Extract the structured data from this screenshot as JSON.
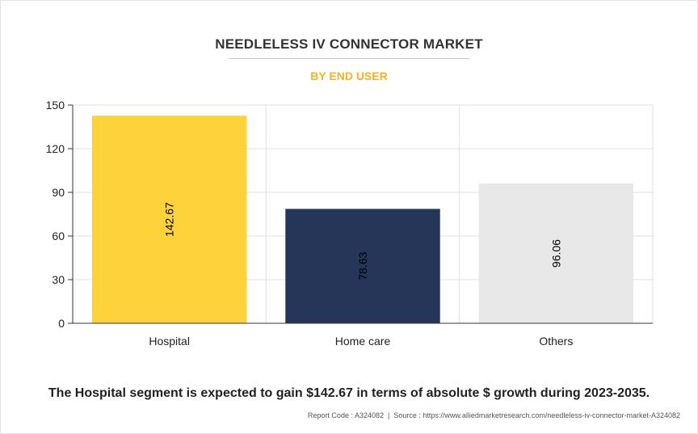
{
  "title": "NEEDLELESS IV CONNECTOR MARKET",
  "subtitle": "BY END USER",
  "caption": "The Hospital segment is expected to gain $142.67 in terms of absolute $ growth during 2023-2035.",
  "source": {
    "report_code": "Report Code : A324082",
    "separator": "|",
    "source_text": "Source : https://www.alliedmarketresearch.com/needleless-iv-connector-market-A324082"
  },
  "colors": {
    "title": "#333333",
    "subtitle": "#f5b223",
    "bar_hospital": "#fdd23b",
    "bar_home_care": "#253659",
    "bar_others": "#e8e8e8",
    "grid": "#e0e0e0"
  },
  "chart_data": {
    "type": "bar",
    "categories": [
      "Hospital",
      "Home care",
      "Others"
    ],
    "values": [
      142.67,
      78.63,
      96.06
    ],
    "value_labels": [
      "142.67",
      "78.63",
      "96.06"
    ],
    "bar_colors": [
      "#fdd23b",
      "#253659",
      "#e8e8e8"
    ],
    "ylim": [
      0,
      150
    ],
    "yticks": [
      0,
      30,
      60,
      90,
      120,
      150
    ],
    "xlabel": "",
    "ylabel": "",
    "grid": true,
    "legend": "none"
  }
}
